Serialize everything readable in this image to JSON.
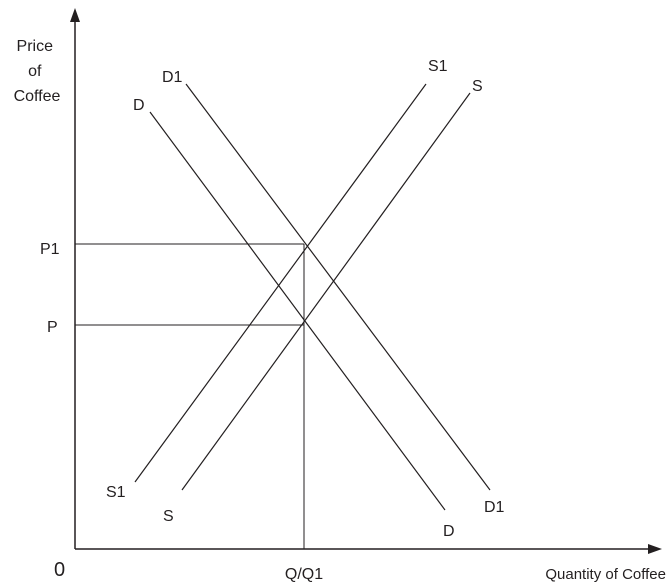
{
  "axes": {
    "y_label_lines": [
      "Price",
      "of",
      "Coffee"
    ],
    "x_label": "Quantity of Coffee",
    "origin": "0"
  },
  "price_ticks": {
    "p1": "P1",
    "p": "P"
  },
  "quantity_tick": "Q/Q1",
  "curves": {
    "d1": {
      "top": "D1",
      "bottom": "D1"
    },
    "d": {
      "top": "D",
      "bottom": "D"
    },
    "s1": {
      "top": "S1",
      "bottom": "S1"
    },
    "s": {
      "top": "S",
      "bottom": "S"
    }
  },
  "colors": {
    "ink": "#231f20",
    "background": "#ffffff"
  }
}
